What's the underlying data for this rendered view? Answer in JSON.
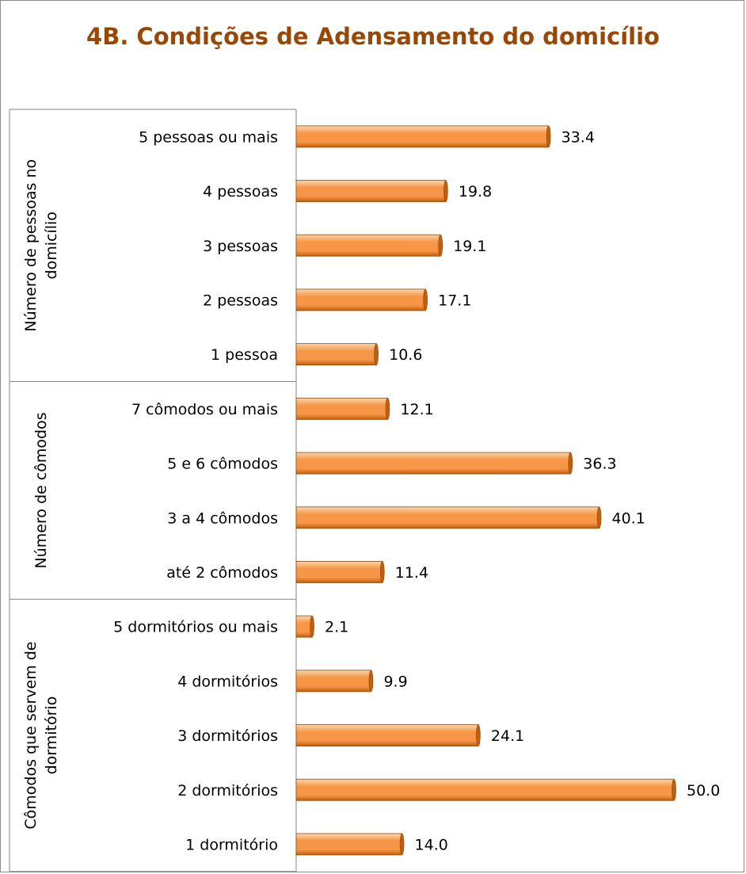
{
  "colors": {
    "title": "#984806",
    "bar_light": "#fcd5a8",
    "bar_mid": "#f79646",
    "bar_dark": "#c0600e",
    "bar_edge": "#8a4a10",
    "axis": "#868686"
  },
  "chart_data": {
    "type": "bar",
    "orientation": "horizontal",
    "title": "4B. Condições de Adensamento do domicílio",
    "xlim": [
      0,
      50
    ],
    "grid": false,
    "legend": "none",
    "groups": [
      {
        "name": "Número de pessoas no domicílio",
        "categories": [
          "5 pessoas ou mais",
          "4 pessoas",
          "3 pessoas",
          "2 pessoas",
          "1 pessoa"
        ],
        "values": [
          33.4,
          19.8,
          19.1,
          17.1,
          10.6
        ]
      },
      {
        "name": "Número de cômodos",
        "categories": [
          "7 cômodos ou mais",
          "5 e 6 cômodos",
          "3 a 4 cômodos",
          "até 2 cômodos"
        ],
        "values": [
          12.1,
          36.3,
          40.1,
          11.4
        ]
      },
      {
        "name": "Cômodos que servem de dormitório",
        "categories": [
          "5 dormitórios ou mais",
          "4 dormitórios",
          "3 dormitórios",
          "2 dormitórios",
          "1 dormitório"
        ],
        "values": [
          2.1,
          9.9,
          24.1,
          50.0,
          14.0
        ]
      }
    ]
  }
}
